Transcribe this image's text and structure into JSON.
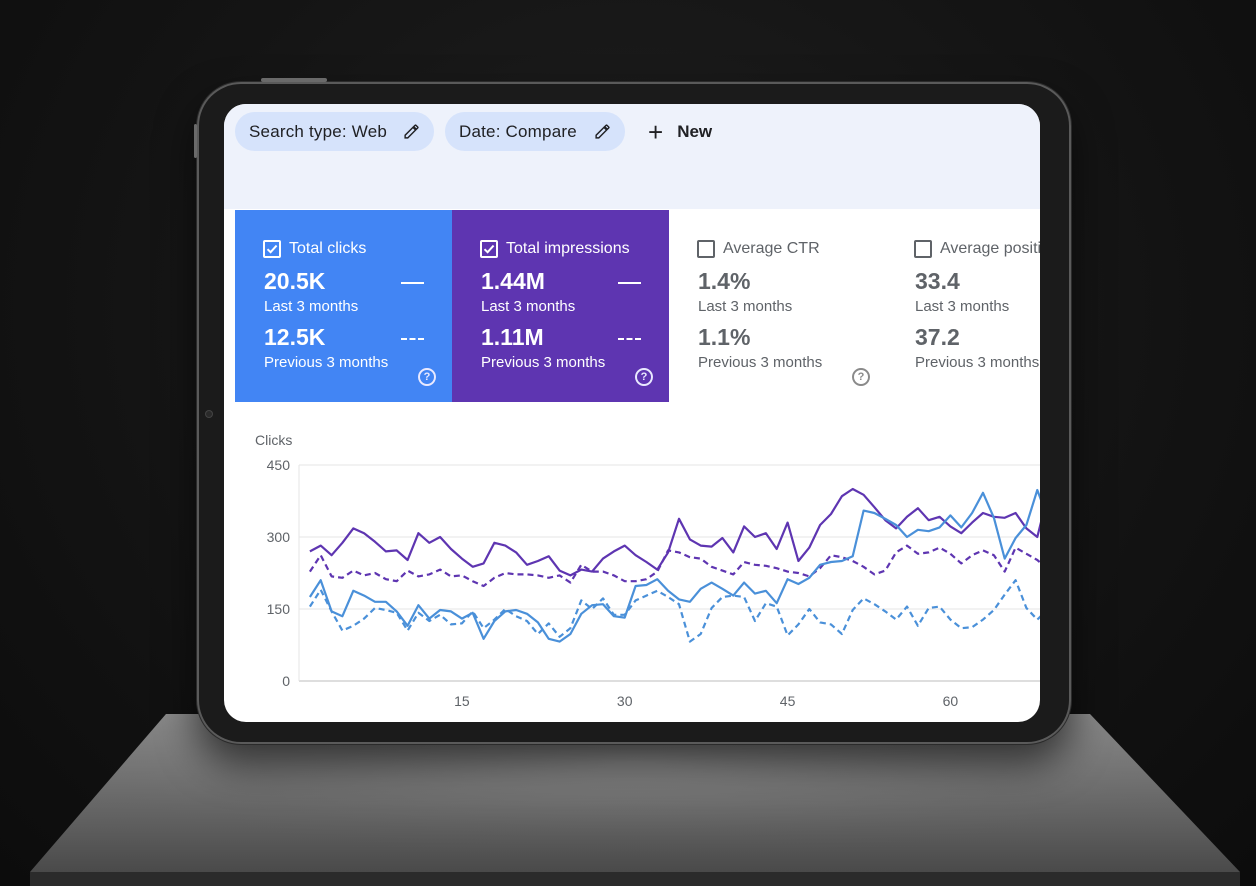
{
  "filters": {
    "search_type": "Search type: Web",
    "date": "Date: Compare",
    "new_label": "New"
  },
  "metrics": [
    {
      "title": "Total clicks",
      "checked": true,
      "current_value": "20.5K",
      "current_label": "Last 3 months",
      "previous_value": "12.5K",
      "previous_label": "Previous 3 months",
      "color": "#4285f4"
    },
    {
      "title": "Total impressions",
      "checked": true,
      "current_value": "1.44M",
      "current_label": "Last 3 months",
      "previous_value": "1.11M",
      "previous_label": "Previous 3 months",
      "color": "#5e35b1"
    },
    {
      "title": "Average CTR",
      "checked": false,
      "current_value": "1.4%",
      "current_label": "Last 3 months",
      "previous_value": "1.1%",
      "previous_label": "Previous 3 months"
    },
    {
      "title": "Average positio",
      "checked": false,
      "current_value": "33.4",
      "current_label": "Last 3 months",
      "previous_value": "37.2",
      "previous_label": "Previous 3 months"
    }
  ],
  "help_glyph": "?",
  "chart_data": {
    "type": "line",
    "ylabel": "Clicks",
    "ylim": [
      0,
      450
    ],
    "yticks": [
      "0",
      "150",
      "300",
      "450"
    ],
    "xlim": [
      0,
      70
    ],
    "xticks": [
      "15",
      "30",
      "45",
      "60"
    ],
    "xtick_values": [
      15,
      30,
      45,
      60
    ],
    "grid": true,
    "x": [
      1,
      2,
      3,
      4,
      5,
      6,
      7,
      8,
      9,
      10,
      11,
      12,
      13,
      14,
      15,
      16,
      17,
      18,
      19,
      20,
      21,
      22,
      23,
      24,
      25,
      26,
      27,
      28,
      29,
      30,
      31,
      32,
      33,
      34,
      35,
      36,
      37,
      38,
      39,
      40,
      41,
      42,
      43,
      44,
      45,
      46,
      47,
      48,
      49,
      50,
      51,
      52,
      53,
      54,
      55,
      56,
      57,
      58,
      59,
      60,
      61,
      62,
      63,
      64,
      65,
      66,
      67,
      68,
      69,
      70
    ],
    "series": [
      {
        "color": "#5e35b1",
        "style": "solid",
        "values": [
          270,
          282,
          262,
          288,
          318,
          308,
          290,
          270,
          272,
          252,
          308,
          288,
          300,
          275,
          255,
          238,
          245,
          288,
          282,
          268,
          242,
          250,
          260,
          230,
          220,
          232,
          228,
          255,
          270,
          282,
          262,
          248,
          232,
          268,
          338,
          295,
          282,
          280,
          298,
          268,
          322,
          300,
          308,
          275,
          330,
          250,
          278,
          325,
          348,
          385,
          400,
          388,
          362,
          335,
          318,
          342,
          360,
          335,
          342,
          322,
          308,
          330,
          350,
          342,
          340,
          350,
          318,
          300,
          390,
          395
        ]
      },
      {
        "color": "#5e35b1",
        "style": "dashed",
        "values": [
          228,
          262,
          218,
          215,
          230,
          220,
          225,
          212,
          208,
          230,
          218,
          222,
          232,
          218,
          220,
          208,
          198,
          215,
          225,
          222,
          222,
          220,
          215,
          220,
          205,
          242,
          228,
          228,
          220,
          208,
          208,
          212,
          228,
          272,
          268,
          258,
          255,
          238,
          230,
          222,
          248,
          242,
          240,
          235,
          228,
          225,
          218,
          235,
          262,
          258,
          250,
          238,
          222,
          230,
          268,
          282,
          265,
          268,
          278,
          265,
          245,
          262,
          272,
          262,
          228,
          278,
          265,
          252,
          232,
          275
        ]
      },
      {
        "color": "#4a90d9",
        "style": "solid",
        "values": [
          175,
          210,
          145,
          135,
          188,
          178,
          165,
          165,
          145,
          115,
          158,
          130,
          148,
          145,
          130,
          142,
          88,
          125,
          145,
          148,
          140,
          122,
          88,
          82,
          98,
          140,
          158,
          160,
          135,
          132,
          198,
          200,
          212,
          188,
          170,
          165,
          192,
          205,
          192,
          178,
          205,
          182,
          188,
          162,
          212,
          202,
          215,
          242,
          248,
          250,
          260,
          355,
          350,
          338,
          325,
          300,
          315,
          312,
          320,
          345,
          320,
          350,
          392,
          340,
          255,
          298,
          325,
          398,
          338,
          330
        ]
      },
      {
        "color": "#4a90d9",
        "style": "dashed",
        "values": [
          155,
          190,
          145,
          105,
          115,
          130,
          152,
          148,
          142,
          105,
          142,
          125,
          138,
          118,
          120,
          145,
          110,
          128,
          150,
          135,
          125,
          98,
          120,
          92,
          110,
          168,
          150,
          172,
          138,
          138,
          168,
          178,
          188,
          175,
          160,
          82,
          98,
          152,
          175,
          178,
          175,
          125,
          162,
          155,
          95,
          118,
          150,
          122,
          118,
          98,
          148,
          172,
          160,
          145,
          128,
          155,
          115,
          152,
          155,
          128,
          110,
          112,
          128,
          148,
          180,
          210,
          152,
          128,
          150,
          155
        ]
      }
    ]
  }
}
